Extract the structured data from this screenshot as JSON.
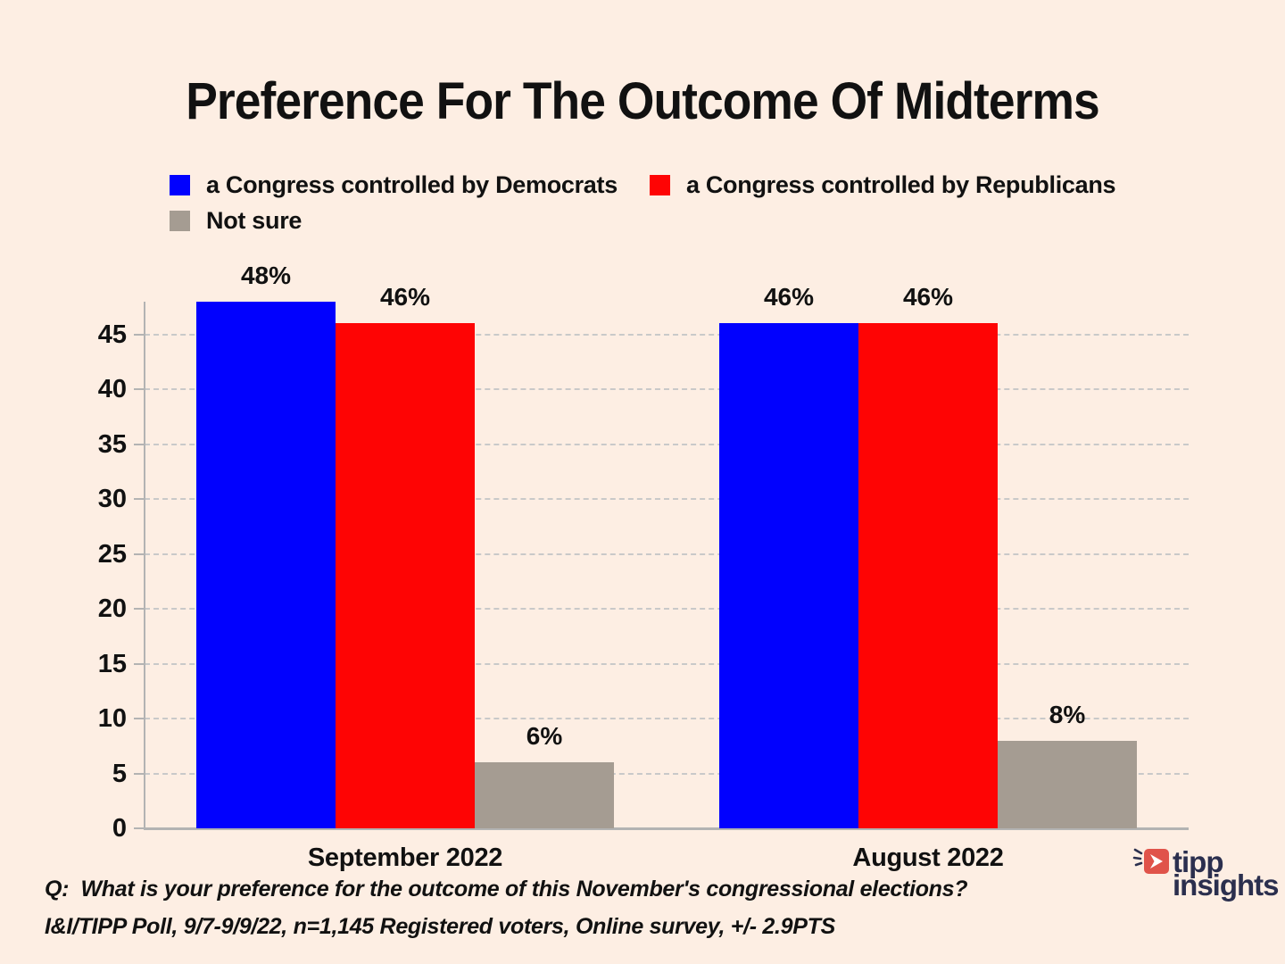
{
  "title": "Preference For The Outcome Of Midterms",
  "chart_data": {
    "type": "bar",
    "categories": [
      "September 2022",
      "August 2022"
    ],
    "series": [
      {
        "name": "a Congress controlled by Democrats",
        "color": "#0101fe",
        "values": [
          48,
          46
        ]
      },
      {
        "name": "a Congress controlled by Republicans",
        "color": "#fe0404",
        "values": [
          46,
          46
        ]
      },
      {
        "name": "Not sure",
        "color": "#a59c92",
        "values": [
          6,
          8
        ]
      }
    ],
    "value_suffix": "%",
    "ylim": [
      0,
      48
    ],
    "yticks": [
      0,
      5,
      10,
      15,
      20,
      25,
      30,
      35,
      40,
      45
    ],
    "grid": "horizontal-dashed",
    "legend_position": "top-left"
  },
  "footer": {
    "question": "Q:  What is your preference for the outcome of this November's congressional elections?",
    "source": "I&I/TIPP Poll, 9/7-9/9/22, n=1,145 Registered voters, Online survey, +/- 2.9PTS"
  },
  "logo": {
    "line1": "tipp",
    "line2": "insights"
  },
  "colors": {
    "background": "#fdeee3",
    "grid": "#c9c9c9",
    "axis": "#b3b3b3",
    "text": "#111111",
    "logo_navy": "#2b2f4e",
    "logo_coral": "#e0534a"
  }
}
